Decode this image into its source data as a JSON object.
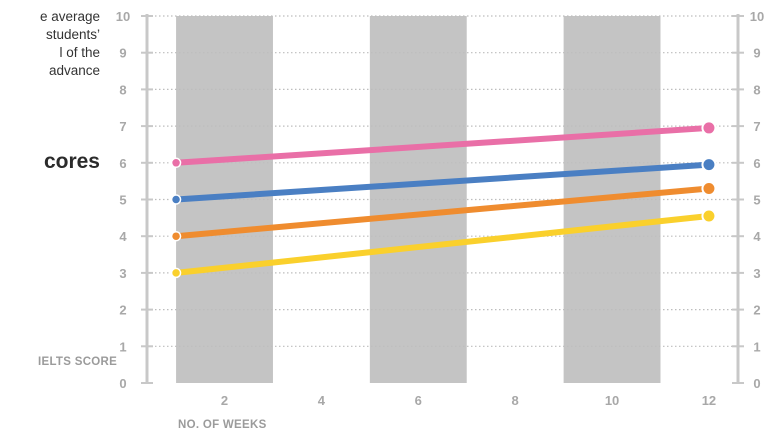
{
  "side": {
    "lines": [
      "e average",
      "students’",
      "l of the",
      "advance"
    ],
    "heading": "cores"
  },
  "chart_data": {
    "type": "line",
    "xlabel": "NO. OF WEEKS",
    "ylabel": "IELTS SCORE",
    "xlim": [
      0.4,
      12.6
    ],
    "ylim": [
      0,
      10
    ],
    "xticks": [
      2,
      4,
      6,
      8,
      10,
      12
    ],
    "yticks": [
      0,
      1,
      2,
      3,
      4,
      5,
      6,
      7,
      8,
      9,
      10
    ],
    "shaded_bands": [
      [
        1,
        3
      ],
      [
        5,
        7
      ],
      [
        9,
        11
      ]
    ],
    "grid": true,
    "series": [
      {
        "color": "#e96fa7",
        "x": [
          1,
          12
        ],
        "values": [
          6.0,
          6.95
        ]
      },
      {
        "color": "#4a7fc3",
        "x": [
          1,
          12
        ],
        "values": [
          5.0,
          5.95
        ]
      },
      {
        "color": "#ef8c2f",
        "x": [
          1,
          12
        ],
        "values": [
          4.0,
          5.3
        ]
      },
      {
        "color": "#fad02c",
        "x": [
          1,
          12
        ],
        "values": [
          3.0,
          4.55
        ]
      }
    ]
  }
}
